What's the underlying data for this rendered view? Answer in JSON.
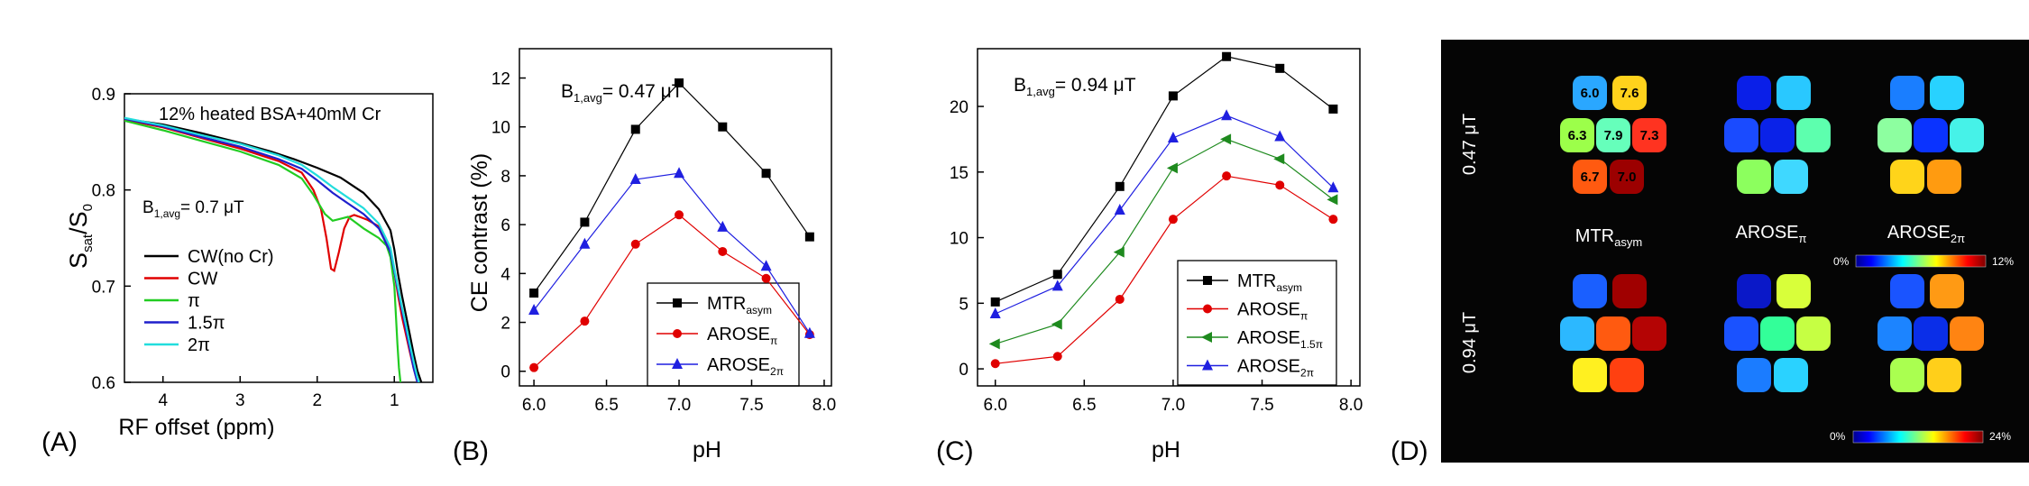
{
  "panel_labels": [
    "(A)",
    "(B)",
    "(C)",
    "(D)"
  ],
  "chart_data": [
    {
      "id": "A",
      "type": "line",
      "title": "12% heated BSA+40mM Cr",
      "annotation": {
        "main": "B",
        "sub": "1,avg",
        "tail": "= 0.7 μT"
      },
      "xlabel": "RF offset (ppm)",
      "ylabel": {
        "a": "S",
        "a_sub": "sat",
        "mid": "/S",
        "b_sub": "0"
      },
      "xlim": [
        4.5,
        0.5
      ],
      "ylim": [
        0.6,
        0.9
      ],
      "xticks": [
        4,
        3,
        2,
        1
      ],
      "yticks": [
        0.6,
        0.7,
        0.8,
        0.9
      ],
      "series": [
        {
          "name": "CW(no Cr)",
          "color": "#000000",
          "x": [
            4.5,
            4.0,
            3.5,
            3.0,
            2.6,
            2.3,
            2.0,
            1.7,
            1.4,
            1.2,
            1.05,
            1.0,
            0.95,
            0.9,
            0.85,
            0.8,
            0.75,
            0.7,
            0.65
          ],
          "y": [
            0.874,
            0.868,
            0.859,
            0.849,
            0.84,
            0.832,
            0.823,
            0.813,
            0.797,
            0.78,
            0.758,
            0.738,
            0.712,
            0.69,
            0.67,
            0.65,
            0.63,
            0.612,
            0.6
          ]
        },
        {
          "name": "CW",
          "color": "#e00000",
          "x": [
            4.5,
            4.0,
            3.5,
            3.0,
            2.5,
            2.2,
            2.05,
            1.95,
            1.88,
            1.82,
            1.78,
            1.72,
            1.65,
            1.58,
            1.52,
            1.45,
            1.35,
            1.2,
            1.05,
            1.0,
            0.95,
            0.9,
            0.85,
            0.8,
            0.75,
            0.7
          ],
          "y": [
            0.873,
            0.865,
            0.854,
            0.843,
            0.83,
            0.818,
            0.8,
            0.78,
            0.75,
            0.718,
            0.716,
            0.735,
            0.76,
            0.772,
            0.774,
            0.772,
            0.769,
            0.762,
            0.735,
            0.715,
            0.69,
            0.668,
            0.65,
            0.632,
            0.615,
            0.6
          ]
        },
        {
          "name": "π",
          "color": "#22cc22",
          "x": [
            4.5,
            4.0,
            3.5,
            3.0,
            2.5,
            2.2,
            2.05,
            1.9,
            1.8,
            1.7,
            1.6,
            1.5,
            1.4,
            1.3,
            1.2,
            1.1,
            1.05,
            1.0,
            0.98,
            0.96,
            0.94,
            0.92
          ],
          "y": [
            0.872,
            0.862,
            0.851,
            0.84,
            0.826,
            0.812,
            0.795,
            0.775,
            0.768,
            0.77,
            0.772,
            0.766,
            0.76,
            0.755,
            0.75,
            0.742,
            0.73,
            0.7,
            0.67,
            0.64,
            0.615,
            0.6
          ]
        },
        {
          "name": "1.5π",
          "color": "#1f1fcc",
          "x": [
            4.5,
            4.0,
            3.5,
            3.0,
            2.5,
            2.2,
            2.0,
            1.8,
            1.6,
            1.4,
            1.2,
            1.05,
            1.0,
            0.95,
            0.9,
            0.85,
            0.8,
            0.75,
            0.7
          ],
          "y": [
            0.874,
            0.866,
            0.855,
            0.845,
            0.832,
            0.822,
            0.81,
            0.797,
            0.786,
            0.775,
            0.76,
            0.735,
            0.715,
            0.695,
            0.675,
            0.655,
            0.635,
            0.615,
            0.6
          ]
        },
        {
          "name": "2π",
          "color": "#22dddd",
          "x": [
            4.5,
            4.0,
            3.5,
            3.0,
            2.5,
            2.2,
            2.0,
            1.8,
            1.6,
            1.4,
            1.2,
            1.05,
            1.0,
            0.95,
            0.9,
            0.85,
            0.8,
            0.75,
            0.7,
            0.68
          ],
          "y": [
            0.875,
            0.867,
            0.857,
            0.848,
            0.836,
            0.826,
            0.815,
            0.803,
            0.792,
            0.781,
            0.765,
            0.74,
            0.718,
            0.698,
            0.678,
            0.66,
            0.64,
            0.622,
            0.605,
            0.6
          ]
        }
      ]
    },
    {
      "id": "B",
      "type": "line",
      "annotation": {
        "main": "B",
        "sub": "1,avg",
        "tail": "= 0.47 μT"
      },
      "xlabel": "pH",
      "ylabel": "CE contrast (%)",
      "xlim": [
        5.9,
        8.05
      ],
      "ylim": [
        -0.6,
        13.2
      ],
      "xticks": [
        "6.0",
        "6.5",
        "7.0",
        "7.5",
        "8.0"
      ],
      "yticks": [
        "0",
        "2",
        "4",
        "6",
        "8",
        "10",
        "12"
      ],
      "x": [
        6.0,
        6.35,
        6.7,
        7.0,
        7.3,
        7.6,
        7.9
      ],
      "series": [
        {
          "name": "MTR",
          "sub": "asym",
          "color": "#000000",
          "marker": "square",
          "values": [
            3.2,
            6.1,
            9.9,
            11.8,
            10.0,
            8.1,
            5.5
          ]
        },
        {
          "name": "AROSE",
          "sub": "π",
          "color": "#e00000",
          "marker": "circle",
          "values": [
            0.15,
            2.05,
            5.2,
            6.4,
            4.9,
            3.8,
            1.5
          ]
        },
        {
          "name": "AROSE",
          "sub": "2π",
          "color": "#1f1fe0",
          "marker": "triangle-up",
          "values": [
            2.5,
            5.2,
            7.85,
            8.1,
            5.9,
            4.3,
            1.55
          ]
        }
      ]
    },
    {
      "id": "C",
      "type": "line",
      "annotation": {
        "main": "B",
        "sub": "1,avg",
        "tail": "= 0.94 μT"
      },
      "xlabel": "pH",
      "ylabel": "",
      "xlim": [
        5.9,
        8.05
      ],
      "ylim": [
        -1.3,
        24.4
      ],
      "xticks": [
        "6.0",
        "6.5",
        "7.0",
        "7.5",
        "8.0"
      ],
      "yticks": [
        "0",
        "5",
        "10",
        "15",
        "20"
      ],
      "x": [
        6.0,
        6.35,
        6.7,
        7.0,
        7.3,
        7.6,
        7.9
      ],
      "series": [
        {
          "name": "MTR",
          "sub": "asym",
          "color": "#000000",
          "marker": "square",
          "values": [
            5.1,
            7.2,
            13.9,
            20.8,
            23.8,
            22.9,
            19.8
          ]
        },
        {
          "name": "AROSE",
          "sub": "π",
          "color": "#e00000",
          "marker": "circle",
          "values": [
            0.4,
            0.95,
            5.3,
            11.4,
            14.7,
            14.0,
            11.4
          ]
        },
        {
          "name": "AROSE",
          "sub": "1.5π",
          "color": "#1e8a1e",
          "marker": "triangle-left",
          "values": [
            1.9,
            3.4,
            8.9,
            15.3,
            17.5,
            16.0,
            12.9
          ]
        },
        {
          "name": "AROSE",
          "sub": "2π",
          "color": "#1f1fe0",
          "marker": "triangle-up",
          "values": [
            4.2,
            6.3,
            12.1,
            17.6,
            19.3,
            17.7,
            13.8
          ]
        }
      ]
    }
  ],
  "panel_d": {
    "row_labels": [
      "0.47 μT",
      "0.94 μT"
    ],
    "column_labels": [
      {
        "main": "MTR",
        "sub": "asym"
      },
      {
        "main": "AROSE",
        "sub": "π"
      },
      {
        "main": "AROSE",
        "sub": "2π"
      }
    ],
    "vial_labels": [
      {
        "label": "6.0",
        "vial": 0
      },
      {
        "label": "7.6",
        "vial": 1
      },
      {
        "label": "6.3",
        "vial": 2
      },
      {
        "label": "7.9",
        "vial": 3
      },
      {
        "label": "7.3",
        "vial": 4
      },
      {
        "label": "6.7",
        "vial": 5
      },
      {
        "label": "7.0",
        "vial": 6
      }
    ],
    "colorbars": [
      {
        "min": "0%",
        "max": "12%"
      },
      {
        "min": "0%",
        "max": "24%"
      }
    ],
    "maps": [
      {
        "row": 0,
        "col": 0,
        "colors": [
          "#2aa7ff",
          "#ffd21c",
          "#9cff4a",
          "#66ffbb",
          "#ff3320",
          "#ff5a10",
          "#9c0000"
        ]
      },
      {
        "row": 0,
        "col": 1,
        "colors": [
          "#0a1fe8",
          "#29c8ff",
          "#1a4bff",
          "#0a22e8",
          "#5dffae",
          "#8cff5e",
          "#3fd8ff"
        ]
      },
      {
        "row": 0,
        "col": 2,
        "colors": [
          "#1a7eff",
          "#28d2ff",
          "#8dffa0",
          "#0a33ff",
          "#46f2e8",
          "#ffd41a",
          "#ff9b10"
        ]
      },
      {
        "row": 1,
        "col": 0,
        "colors": [
          "#1a5fff",
          "#a00000",
          "#2cb8ff",
          "#ff5a10",
          "#b40404",
          "#fff020",
          "#ff4010"
        ]
      },
      {
        "row": 1,
        "col": 1,
        "colors": [
          "#0a18c8",
          "#d8ff3a",
          "#1a52ff",
          "#33ff99",
          "#c6ff43",
          "#1b7cff",
          "#2ad2ff"
        ]
      },
      {
        "row": 1,
        "col": 2,
        "colors": [
          "#1a54ff",
          "#ff9a14",
          "#1c84ff",
          "#0a2ee8",
          "#ff8412",
          "#aaff50",
          "#ffcf1a"
        ]
      }
    ]
  }
}
